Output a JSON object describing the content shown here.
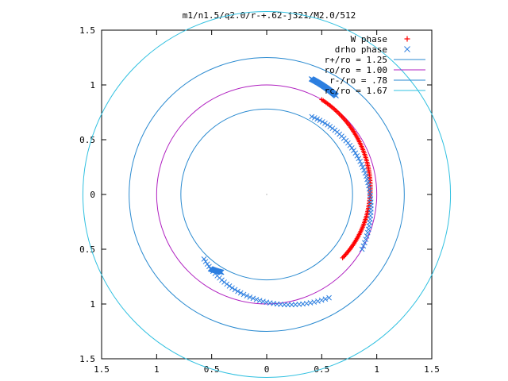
{
  "chart_data": {
    "type": "scatter",
    "title": "m1/n1.5/q2.0/r-+.62-j321/M2.0/512",
    "xlabel": "",
    "ylabel": "",
    "xlim": [
      -1.5,
      1.5
    ],
    "ylim": [
      -1.5,
      1.5
    ],
    "x_ticks": [
      -1.5,
      -1,
      -0.5,
      0,
      0.5,
      1,
      1.5
    ],
    "y_ticks": [
      -1.5,
      -1,
      -0.5,
      0,
      0.5,
      1,
      1.5
    ],
    "x_tick_labels": [
      "1.5",
      "1",
      "0.5",
      "0",
      "0.5",
      "1",
      "1.5"
    ],
    "y_tick_labels": [
      "1.5",
      "1",
      "0.5",
      "0",
      "0.5",
      "1",
      "1.5"
    ],
    "grid": false,
    "legend_position": "top-right",
    "series": [
      {
        "name": "W phase",
        "marker": "plus",
        "color": "#ff0000",
        "arc": {
          "radius_start": 1.0,
          "radius_end": 0.9,
          "angle_start_deg": 60,
          "angle_end_deg": -40,
          "count": 110
        }
      },
      {
        "name": "drho phase",
        "marker": "cross",
        "color": "#2d7fe0",
        "arc": {
          "radius_start": 0.82,
          "radius_end": 1.1,
          "angle_start_deg": 226,
          "angle_end_deg": 301,
          "count": 42
        }
      },
      {
        "name": "drho phase",
        "marker": "cross",
        "color": "#2d7fe0",
        "arc": {
          "radius_start": 1.0,
          "radius_end": 0.82,
          "angle_start_deg": -30,
          "angle_end_deg": 60,
          "count": 50
        }
      },
      {
        "name": "drho phase",
        "marker": "cross",
        "color": "#2d7fe0",
        "arc": {
          "radius_start": 1.1,
          "radius_end": 1.13,
          "angle_start_deg": 55,
          "angle_end_deg": 69,
          "count": 60
        }
      },
      {
        "name": "drho phase",
        "marker": "cross",
        "color": "#2d7fe0",
        "arc": {
          "radius_start": 0.85,
          "radius_end": 0.82,
          "angle_start_deg": 233,
          "angle_end_deg": 240,
          "count": 25
        }
      }
    ],
    "circles": [
      {
        "name": "r+/ro = 1.25",
        "radius": 1.25,
        "color": "#2a8ad0"
      },
      {
        "name": "ro/ro = 1.00",
        "radius": 1.0,
        "color": "#b020c0"
      },
      {
        "name": "r-/ro = .78",
        "radius": 0.78,
        "color": "#2a8ad0"
      },
      {
        "name": "rc/ro = 1.67",
        "radius": 1.67,
        "color": "#30c0e0"
      }
    ],
    "legend": [
      {
        "label": "W phase",
        "kind": "plus",
        "color": "#ff0000"
      },
      {
        "label": "drho phase",
        "kind": "cross",
        "color": "#2d7fe0"
      },
      {
        "label": "r+/ro = 1.25",
        "kind": "line",
        "color": "#2a8ad0"
      },
      {
        "label": "ro/ro = 1.00",
        "kind": "line",
        "color": "#b020c0"
      },
      {
        "label": "r-/ro = .78",
        "kind": "line",
        "color": "#2a8ad0"
      },
      {
        "label": "rc/ro = 1.67",
        "kind": "line",
        "color": "#30c0e0"
      }
    ]
  }
}
